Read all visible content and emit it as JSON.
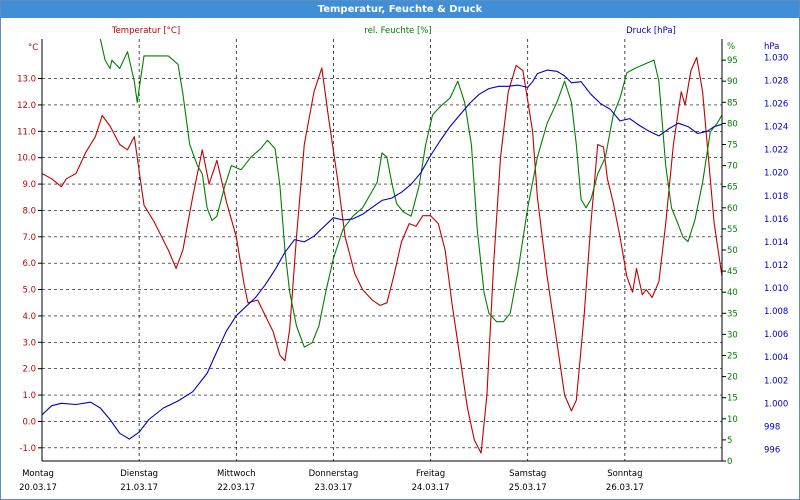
{
  "window": {
    "title": "Temperatur, Feuchte & Druck"
  },
  "chart_data": {
    "type": "line",
    "title": "Temperatur, Feuchte & Druck",
    "x_range": [
      "20.03.17 00:00",
      "26.03.17 24:00"
    ],
    "days": [
      {
        "name": "Montag",
        "date": "20.03.17"
      },
      {
        "name": "Dienstag",
        "date": "21.03.17"
      },
      {
        "name": "Mittwoch",
        "date": "22.03.17"
      },
      {
        "name": "Donnerstag",
        "date": "23.03.17"
      },
      {
        "name": "Freitag",
        "date": "24.03.17"
      },
      {
        "name": "Samstag",
        "date": "25.03.17"
      },
      {
        "name": "Sonntag",
        "date": "26.03.17"
      }
    ],
    "grid": true,
    "axes": {
      "temperature": {
        "label": "Temperatur [°C]",
        "unit": "°C",
        "min": -1.5,
        "max": 14.5,
        "ticks": [
          "-1.0",
          "0.0",
          "1.0",
          "2.0",
          "3.0",
          "4.0",
          "5.0",
          "6.0",
          "7.0",
          "8.0",
          "9.0",
          "10.0",
          "11.0",
          "12.0",
          "13.0"
        ]
      },
      "humidity": {
        "label": "rel. Feuchte [%]",
        "unit": "%",
        "min": 0,
        "max": 100,
        "ticks": [
          "0",
          "5",
          "10",
          "15",
          "20",
          "25",
          "30",
          "35",
          "40",
          "45",
          "50",
          "55",
          "60",
          "65",
          "70",
          "75",
          "80",
          "85",
          "90",
          "95"
        ]
      },
      "pressure": {
        "label": "Druck [hPa]",
        "unit": "hPa",
        "min": 995,
        "max": 1031.6,
        "ticks": [
          "996",
          "998",
          "1.000",
          "1.002",
          "1.004",
          "1.006",
          "1.008",
          "1.010",
          "1.012",
          "1.014",
          "1.016",
          "1.018",
          "1.020",
          "1.022",
          "1.024",
          "1.026",
          "1.028",
          "1.030"
        ]
      }
    },
    "series": [
      {
        "name": "Temperatur [°C]",
        "axis": "temperature",
        "color": "#c00000",
        "points": [
          [
            0,
            9.4
          ],
          [
            0.1,
            9.2
          ],
          [
            0.2,
            8.9
          ],
          [
            0.25,
            9.2
          ],
          [
            0.35,
            9.4
          ],
          [
            0.45,
            10.2
          ],
          [
            0.55,
            10.8
          ],
          [
            0.62,
            11.6
          ],
          [
            0.7,
            11.2
          ],
          [
            0.8,
            10.5
          ],
          [
            0.88,
            10.3
          ],
          [
            0.95,
            10.8
          ],
          [
            1.05,
            8.2
          ],
          [
            1.15,
            7.6
          ],
          [
            1.3,
            6.5
          ],
          [
            1.38,
            5.8
          ],
          [
            1.45,
            6.5
          ],
          [
            1.55,
            8.5
          ],
          [
            1.65,
            10.3
          ],
          [
            1.72,
            9.0
          ],
          [
            1.8,
            9.9
          ],
          [
            1.9,
            8.3
          ],
          [
            2.0,
            7.0
          ],
          [
            2.08,
            5.2
          ],
          [
            2.12,
            4.5
          ],
          [
            2.22,
            4.6
          ],
          [
            2.3,
            4.0
          ],
          [
            2.38,
            3.4
          ],
          [
            2.45,
            2.5
          ],
          [
            2.5,
            2.3
          ],
          [
            2.55,
            3.5
          ],
          [
            2.62,
            7.0
          ],
          [
            2.7,
            10.5
          ],
          [
            2.8,
            12.5
          ],
          [
            2.88,
            13.4
          ],
          [
            2.95,
            11.5
          ],
          [
            3.05,
            9.0
          ],
          [
            3.12,
            7.0
          ],
          [
            3.22,
            5.6
          ],
          [
            3.3,
            5.0
          ],
          [
            3.4,
            4.6
          ],
          [
            3.48,
            4.4
          ],
          [
            3.55,
            4.5
          ],
          [
            3.62,
            5.5
          ],
          [
            3.7,
            6.8
          ],
          [
            3.78,
            7.5
          ],
          [
            3.85,
            7.4
          ],
          [
            3.92,
            7.8
          ],
          [
            4.0,
            7.8
          ],
          [
            4.08,
            7.5
          ],
          [
            4.15,
            6.5
          ],
          [
            4.22,
            4.5
          ],
          [
            4.3,
            2.5
          ],
          [
            4.38,
            0.5
          ],
          [
            4.45,
            -0.7
          ],
          [
            4.52,
            -1.2
          ],
          [
            4.58,
            1.0
          ],
          [
            4.65,
            6.0
          ],
          [
            4.72,
            10.0
          ],
          [
            4.8,
            12.5
          ],
          [
            4.88,
            13.5
          ],
          [
            4.95,
            13.3
          ],
          [
            5.05,
            11.0
          ],
          [
            5.1,
            8.5
          ],
          [
            5.2,
            5.5
          ],
          [
            5.3,
            3.0
          ],
          [
            5.38,
            1.0
          ],
          [
            5.45,
            0.4
          ],
          [
            5.5,
            0.8
          ],
          [
            5.58,
            4.0
          ],
          [
            5.65,
            7.5
          ],
          [
            5.72,
            10.5
          ],
          [
            5.78,
            10.4
          ],
          [
            5.82,
            9.2
          ],
          [
            5.88,
            8.3
          ],
          [
            5.95,
            7.0
          ],
          [
            6.02,
            5.5
          ],
          [
            6.08,
            4.9
          ],
          [
            6.12,
            5.8
          ],
          [
            6.18,
            4.8
          ],
          [
            6.22,
            5.0
          ],
          [
            6.28,
            4.7
          ],
          [
            6.35,
            5.3
          ],
          [
            6.42,
            7.5
          ],
          [
            6.5,
            10.5
          ],
          [
            6.58,
            12.5
          ],
          [
            6.62,
            12.0
          ],
          [
            6.68,
            13.3
          ],
          [
            6.74,
            13.8
          ],
          [
            6.8,
            12.5
          ],
          [
            6.86,
            10.0
          ],
          [
            6.92,
            7.5
          ],
          [
            7.0,
            5.5
          ]
        ]
      },
      {
        "name": "rel. Feuchte [%]",
        "axis": "humidity",
        "color": "#008000",
        "points": [
          [
            0.6,
            100
          ],
          [
            0.65,
            95
          ],
          [
            0.7,
            93
          ],
          [
            0.72,
            95
          ],
          [
            0.8,
            93
          ],
          [
            0.88,
            97
          ],
          [
            0.95,
            90
          ],
          [
            0.98,
            85
          ],
          [
            1.05,
            96
          ],
          [
            1.15,
            96
          ],
          [
            1.3,
            96
          ],
          [
            1.4,
            94
          ],
          [
            1.45,
            87
          ],
          [
            1.52,
            75
          ],
          [
            1.6,
            70
          ],
          [
            1.65,
            68
          ],
          [
            1.7,
            60
          ],
          [
            1.75,
            57
          ],
          [
            1.8,
            58
          ],
          [
            1.88,
            65
          ],
          [
            1.95,
            70
          ],
          [
            2.05,
            69
          ],
          [
            2.15,
            72
          ],
          [
            2.25,
            74
          ],
          [
            2.32,
            76
          ],
          [
            2.4,
            74
          ],
          [
            2.45,
            65
          ],
          [
            2.5,
            50
          ],
          [
            2.55,
            40
          ],
          [
            2.62,
            32
          ],
          [
            2.7,
            27
          ],
          [
            2.78,
            28
          ],
          [
            2.85,
            32
          ],
          [
            2.92,
            40
          ],
          [
            3.0,
            48
          ],
          [
            3.1,
            55
          ],
          [
            3.2,
            58
          ],
          [
            3.3,
            60
          ],
          [
            3.4,
            64
          ],
          [
            3.45,
            66
          ],
          [
            3.5,
            73
          ],
          [
            3.55,
            72
          ],
          [
            3.6,
            66
          ],
          [
            3.65,
            61
          ],
          [
            3.72,
            59
          ],
          [
            3.8,
            58
          ],
          [
            3.88,
            65
          ],
          [
            3.95,
            75
          ],
          [
            4.02,
            82
          ],
          [
            4.1,
            84
          ],
          [
            4.2,
            86
          ],
          [
            4.28,
            90
          ],
          [
            4.35,
            85
          ],
          [
            4.42,
            75
          ],
          [
            4.48,
            55
          ],
          [
            4.55,
            40
          ],
          [
            4.6,
            35
          ],
          [
            4.68,
            33
          ],
          [
            4.75,
            33
          ],
          [
            4.82,
            35
          ],
          [
            4.9,
            45
          ],
          [
            5.0,
            60
          ],
          [
            5.1,
            72
          ],
          [
            5.2,
            80
          ],
          [
            5.3,
            85
          ],
          [
            5.38,
            90
          ],
          [
            5.45,
            85
          ],
          [
            5.5,
            75
          ],
          [
            5.55,
            62
          ],
          [
            5.6,
            60
          ],
          [
            5.65,
            62
          ],
          [
            5.72,
            68
          ],
          [
            5.8,
            72
          ],
          [
            5.88,
            82
          ],
          [
            5.95,
            86
          ],
          [
            6.02,
            92
          ],
          [
            6.1,
            93
          ],
          [
            6.2,
            94
          ],
          [
            6.3,
            95
          ],
          [
            6.35,
            90
          ],
          [
            6.42,
            70
          ],
          [
            6.48,
            60
          ],
          [
            6.55,
            56
          ],
          [
            6.6,
            53
          ],
          [
            6.65,
            52
          ],
          [
            6.72,
            57
          ],
          [
            6.8,
            66
          ],
          [
            6.88,
            78
          ],
          [
            6.95,
            80
          ],
          [
            7.0,
            82
          ]
        ]
      },
      {
        "name": "Druck [hPa]",
        "axis": "pressure",
        "color": "#0000c0",
        "points": [
          [
            0,
            999.0
          ],
          [
            0.1,
            999.8
          ],
          [
            0.2,
            1000.0
          ],
          [
            0.35,
            999.9
          ],
          [
            0.5,
            1000.1
          ],
          [
            0.6,
            999.6
          ],
          [
            0.7,
            998.6
          ],
          [
            0.8,
            997.4
          ],
          [
            0.9,
            996.9
          ],
          [
            1.0,
            997.5
          ],
          [
            1.1,
            998.6
          ],
          [
            1.25,
            999.6
          ],
          [
            1.4,
            1000.2
          ],
          [
            1.55,
            1001.0
          ],
          [
            1.7,
            1002.6
          ],
          [
            1.8,
            1004.5
          ],
          [
            1.9,
            1006.3
          ],
          [
            2.0,
            1007.6
          ],
          [
            2.1,
            1008.4
          ],
          [
            2.2,
            1009.2
          ],
          [
            2.3,
            1010.3
          ],
          [
            2.4,
            1011.6
          ],
          [
            2.5,
            1013.1
          ],
          [
            2.6,
            1014.2
          ],
          [
            2.7,
            1014.0
          ],
          [
            2.8,
            1014.5
          ],
          [
            2.9,
            1015.3
          ],
          [
            3.0,
            1016.1
          ],
          [
            3.1,
            1015.9
          ],
          [
            3.2,
            1016.0
          ],
          [
            3.3,
            1016.4
          ],
          [
            3.4,
            1017.0
          ],
          [
            3.5,
            1017.6
          ],
          [
            3.6,
            1017.8
          ],
          [
            3.7,
            1018.3
          ],
          [
            3.8,
            1019.0
          ],
          [
            3.9,
            1020.0
          ],
          [
            4.0,
            1021.5
          ],
          [
            4.1,
            1022.8
          ],
          [
            4.2,
            1024.0
          ],
          [
            4.3,
            1025.0
          ],
          [
            4.4,
            1026.0
          ],
          [
            4.5,
            1026.8
          ],
          [
            4.6,
            1027.3
          ],
          [
            4.7,
            1027.5
          ],
          [
            4.8,
            1027.5
          ],
          [
            4.9,
            1027.6
          ],
          [
            5.0,
            1027.4
          ],
          [
            5.05,
            1027.9
          ],
          [
            5.1,
            1028.6
          ],
          [
            5.2,
            1028.9
          ],
          [
            5.3,
            1028.8
          ],
          [
            5.38,
            1028.4
          ],
          [
            5.45,
            1027.8
          ],
          [
            5.55,
            1027.9
          ],
          [
            5.65,
            1026.8
          ],
          [
            5.75,
            1026.0
          ],
          [
            5.85,
            1025.5
          ],
          [
            5.95,
            1024.5
          ],
          [
            6.05,
            1024.7
          ],
          [
            6.15,
            1024.1
          ],
          [
            6.25,
            1023.6
          ],
          [
            6.35,
            1023.2
          ],
          [
            6.45,
            1023.8
          ],
          [
            6.55,
            1024.3
          ],
          [
            6.65,
            1024.0
          ],
          [
            6.75,
            1023.4
          ],
          [
            6.85,
            1023.6
          ],
          [
            6.92,
            1024.0
          ],
          [
            7.0,
            1024.2
          ]
        ]
      }
    ]
  }
}
